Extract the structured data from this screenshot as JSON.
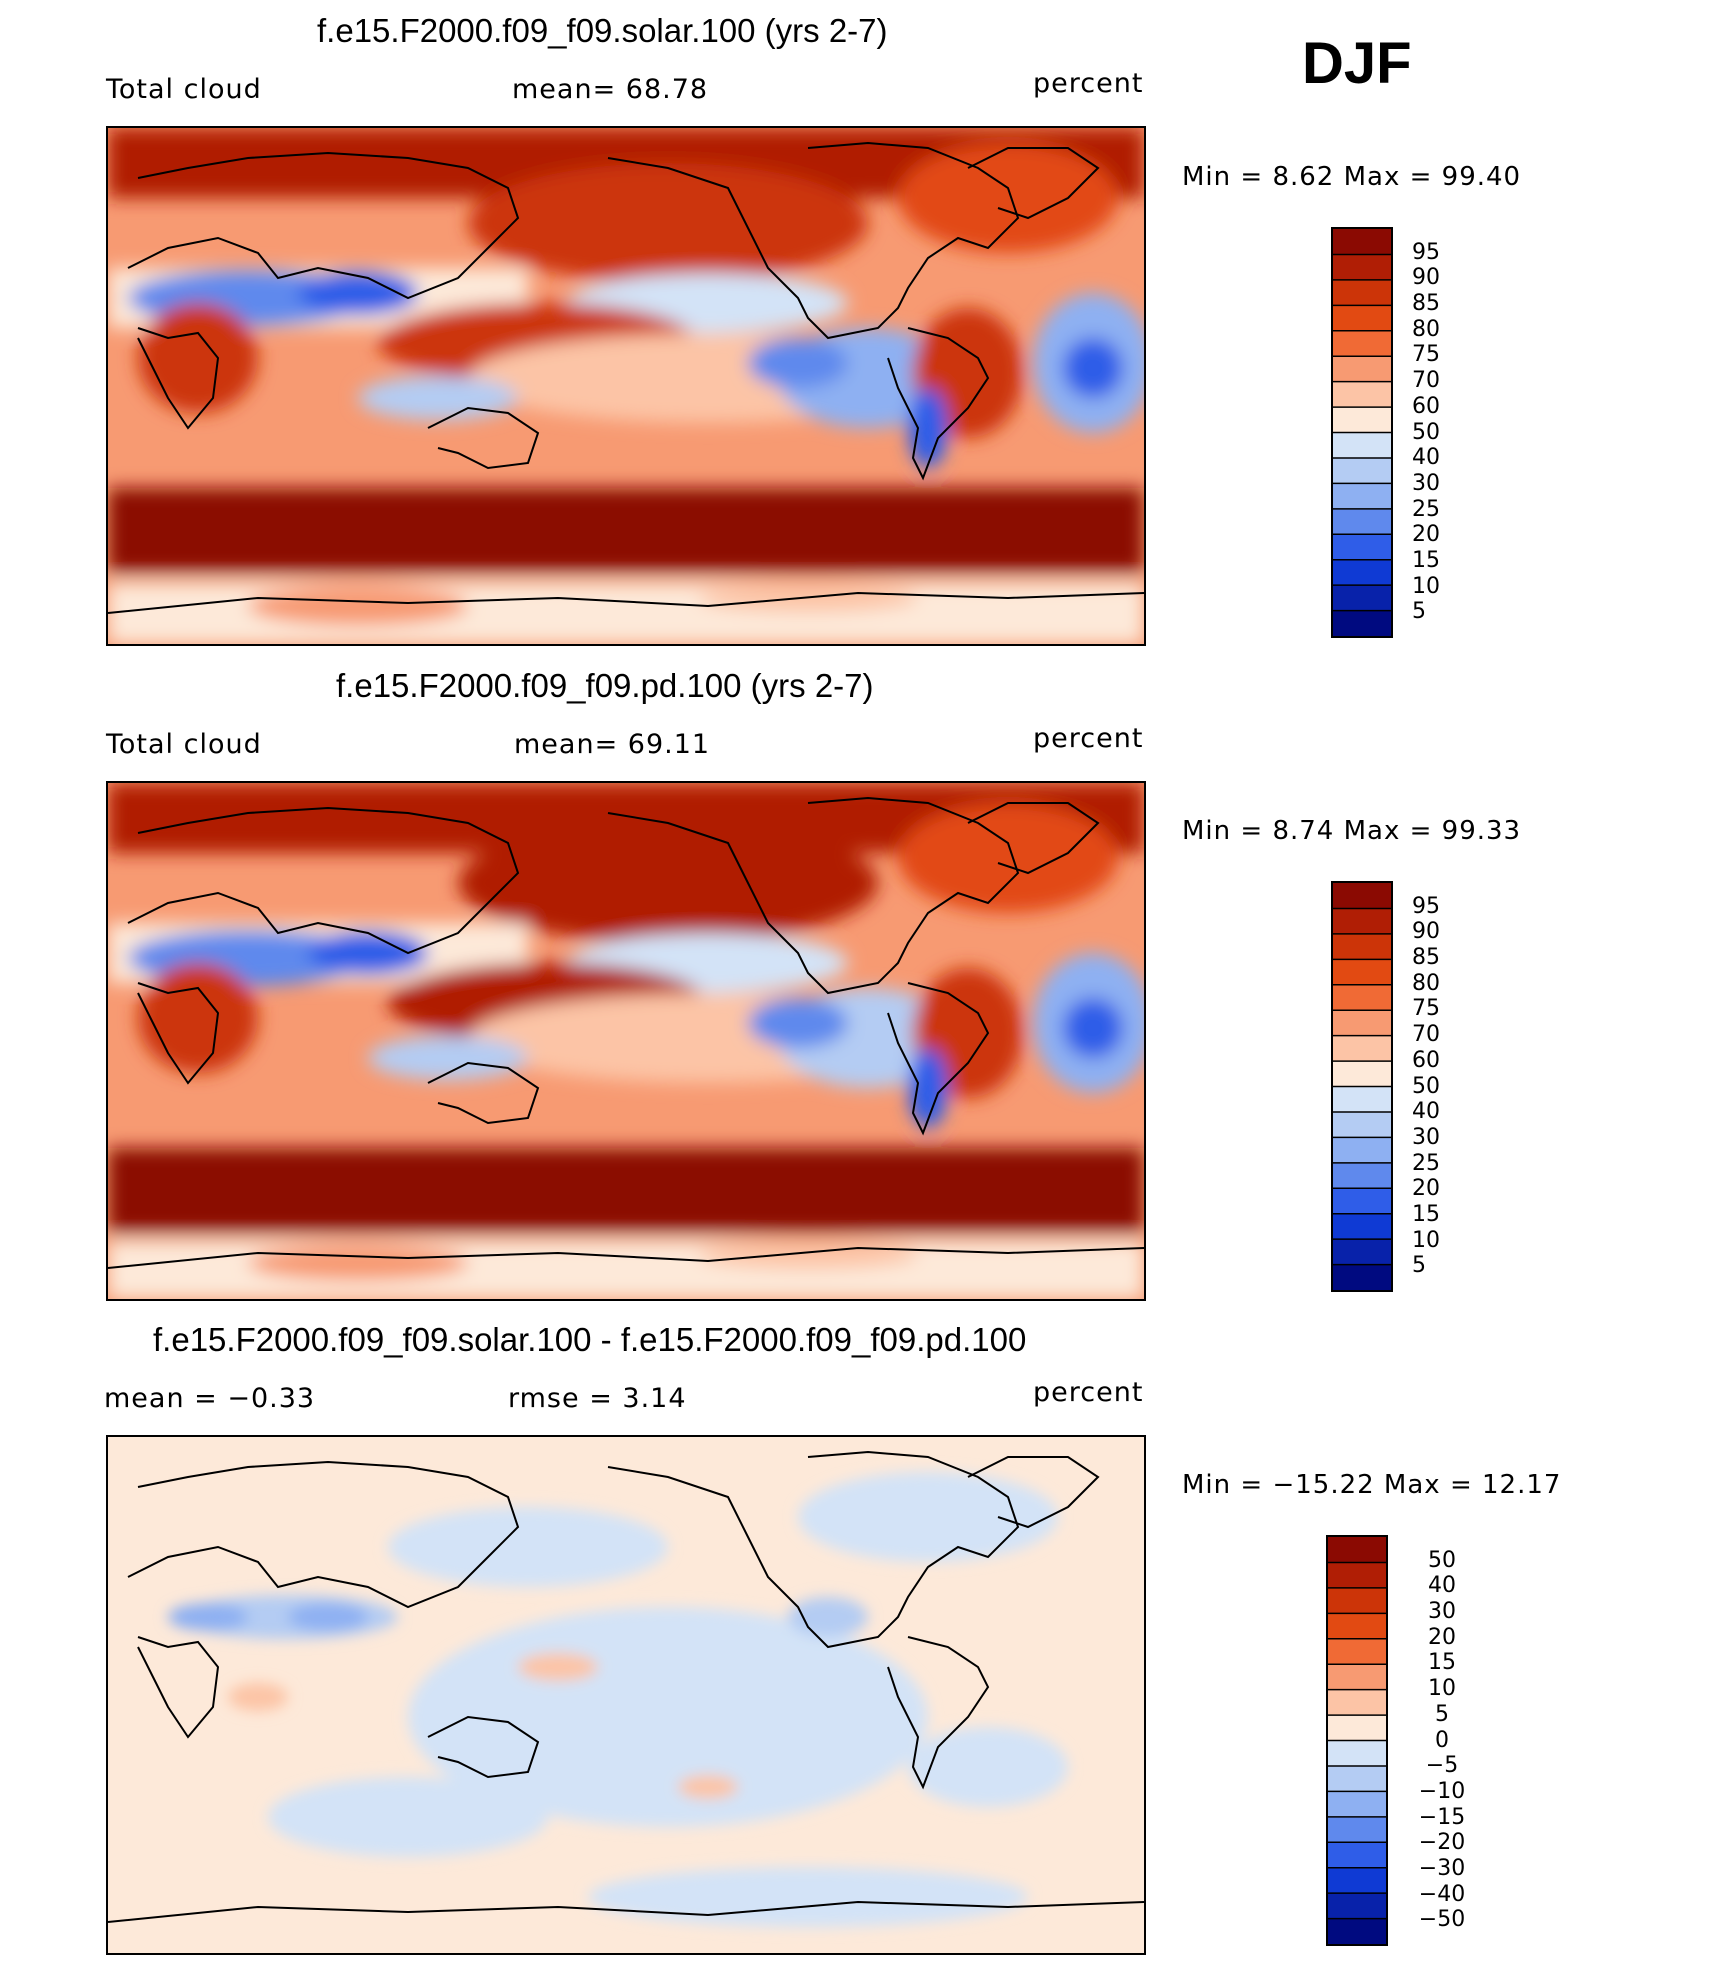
{
  "figure": {
    "season": "DJF"
  },
  "panels": [
    {
      "title": "f.e15.F2000.f09_f09.solar.100 (yrs 2-7)",
      "left_label": "Total cloud",
      "center_label": "mean=   68.78",
      "right_label": "percent",
      "minmax": "Min =    8.62  Max =    99.40",
      "colorbar_ticks": [
        "95",
        "90",
        "85",
        "80",
        "75",
        "70",
        "60",
        "50",
        "40",
        "30",
        "25",
        "20",
        "15",
        "10",
        "5"
      ]
    },
    {
      "title": "f.e15.F2000.f09_f09.pd.100 (yrs 2-7)",
      "left_label": "Total cloud",
      "center_label": "mean=   69.11",
      "right_label": "percent",
      "minmax": "Min =    8.74  Max =    99.33",
      "colorbar_ticks": [
        "95",
        "90",
        "85",
        "80",
        "75",
        "70",
        "60",
        "50",
        "40",
        "30",
        "25",
        "20",
        "15",
        "10",
        "5"
      ]
    },
    {
      "title": "f.e15.F2000.f09_f09.solar.100 - f.e15.F2000.f09_f09.pd.100",
      "left_label": "mean =   −0.33",
      "center_label": "rmse =     3.14",
      "right_label": "percent",
      "minmax": "Min = −15.22  Max =    12.17",
      "colorbar_ticks": [
        "50",
        "40",
        "30",
        "20",
        "15",
        "10",
        "5",
        "0",
        "−5",
        "−10",
        "−15",
        "−20",
        "−30",
        "−40",
        "−50"
      ]
    }
  ],
  "colors": {
    "scale": [
      "#8b0a02",
      "#b01e05",
      "#cc3408",
      "#e24a12",
      "#f06a35",
      "#f79a72",
      "#fcc4a6",
      "#fde9d9",
      "#d3e3f7",
      "#b4ccf3",
      "#8eb0f2",
      "#5f89ed",
      "#2f5de8",
      "#0f3ad4",
      "#0822aa",
      "#000a80"
    ]
  }
}
